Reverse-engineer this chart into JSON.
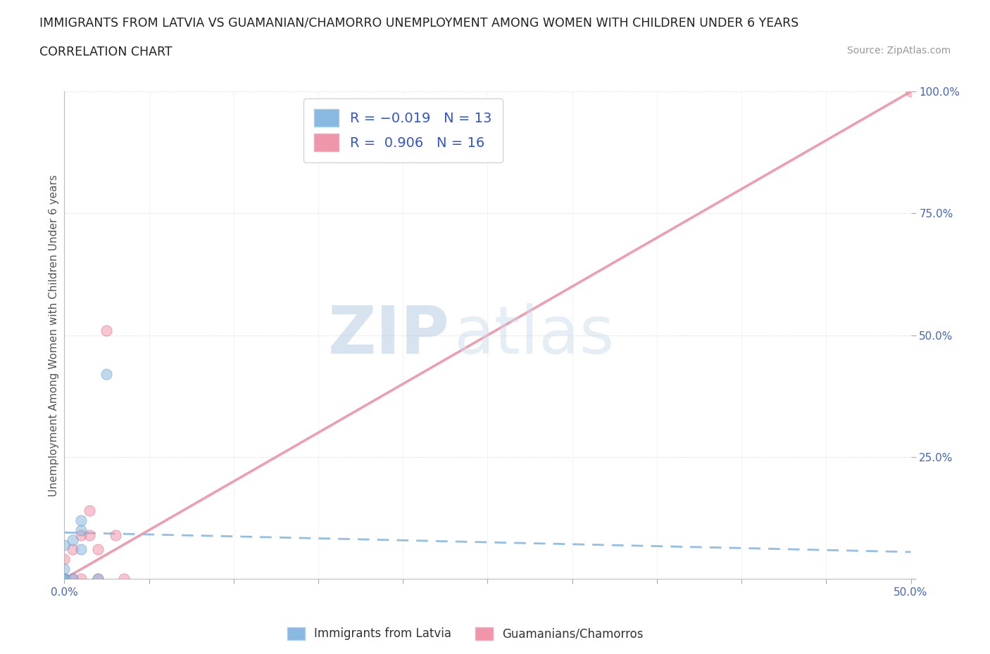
{
  "title_line1": "IMMIGRANTS FROM LATVIA VS GUAMANIAN/CHAMORRO UNEMPLOYMENT AMONG WOMEN WITH CHILDREN UNDER 6 YEARS",
  "title_line2": "CORRELATION CHART",
  "source": "Source: ZipAtlas.com",
  "ylabel": "Unemployment Among Women with Children Under 6 years",
  "xlim": [
    0.0,
    0.5
  ],
  "ylim": [
    0.0,
    1.0
  ],
  "xticks": [
    0.0,
    0.05,
    0.1,
    0.15,
    0.2,
    0.25,
    0.3,
    0.35,
    0.4,
    0.45,
    0.5
  ],
  "yticks": [
    0.0,
    0.25,
    0.5,
    0.75,
    1.0
  ],
  "xtick_labels": [
    "0.0%",
    "",
    "",
    "",
    "",
    "",
    "",
    "",
    "",
    "",
    "50.0%"
  ],
  "ytick_labels": [
    "",
    "25.0%",
    "50.0%",
    "75.0%",
    "100.0%"
  ],
  "blue_scatter_x": [
    0.0,
    0.0,
    0.0,
    0.0,
    0.0,
    0.0,
    0.005,
    0.005,
    0.01,
    0.01,
    0.01,
    0.02,
    0.025
  ],
  "blue_scatter_y": [
    0.0,
    0.0,
    0.0,
    0.0,
    0.02,
    0.07,
    0.0,
    0.08,
    0.06,
    0.1,
    0.12,
    0.0,
    0.42
  ],
  "pink_scatter_x": [
    0.0,
    0.0,
    0.0,
    0.0,
    0.005,
    0.005,
    0.01,
    0.01,
    0.015,
    0.015,
    0.02,
    0.02,
    0.025,
    0.03,
    0.035,
    0.5
  ],
  "pink_scatter_y": [
    0.0,
    0.0,
    0.0,
    0.04,
    0.0,
    0.06,
    0.0,
    0.09,
    0.09,
    0.14,
    0.0,
    0.06,
    0.51,
    0.09,
    0.0,
    1.0
  ],
  "blue_line_x": [
    0.0,
    0.5
  ],
  "blue_line_y": [
    0.095,
    0.055
  ],
  "pink_line_x": [
    0.0,
    0.5
  ],
  "pink_line_y": [
    0.0,
    1.0
  ],
  "blue_color": "#89b8e0",
  "pink_color": "#f096aa",
  "blue_edge": "#6090c8",
  "pink_edge": "#d86080",
  "watermark_zip": "ZIP",
  "watermark_atlas": "atlas",
  "background_color": "#ffffff",
  "grid_color": "#d8d8d8",
  "title_color": "#222222",
  "marker_size": 120,
  "legend_label_color": "#3355cc"
}
